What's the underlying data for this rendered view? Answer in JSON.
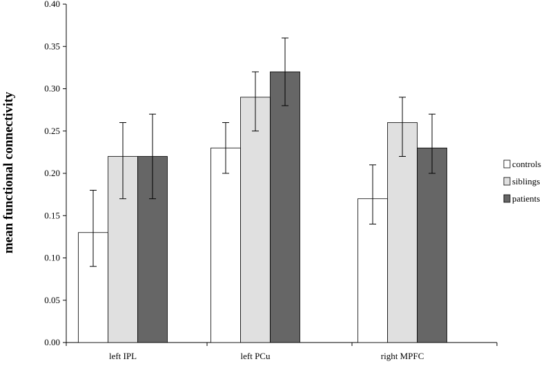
{
  "chart_data": {
    "type": "bar",
    "title": "",
    "xlabel": "",
    "ylabel": "mean functional connectivity",
    "ylim": [
      0,
      0.4
    ],
    "yticks": [
      "0.00",
      "0.05",
      "0.10",
      "0.15",
      "0.20",
      "0.25",
      "0.30",
      "0.35",
      "0.40"
    ],
    "categories": [
      "left IPL",
      "left PCu",
      "right MPFC"
    ],
    "series": [
      {
        "name": "controls",
        "color": "#ffffff",
        "values": [
          0.13,
          0.23,
          0.17
        ],
        "error_low": [
          0.09,
          0.2,
          0.14
        ],
        "error_high": [
          0.18,
          0.26,
          0.21
        ]
      },
      {
        "name": "siblings",
        "color": "#e0e0e0",
        "values": [
          0.22,
          0.29,
          0.26
        ],
        "error_low": [
          0.17,
          0.25,
          0.22
        ],
        "error_high": [
          0.26,
          0.32,
          0.29
        ]
      },
      {
        "name": "patients",
        "color": "#666666",
        "values": [
          0.22,
          0.32,
          0.23
        ],
        "error_low": [
          0.17,
          0.28,
          0.2
        ],
        "error_high": [
          0.27,
          0.36,
          0.27
        ]
      }
    ],
    "grid": false,
    "legend_position": "right"
  }
}
